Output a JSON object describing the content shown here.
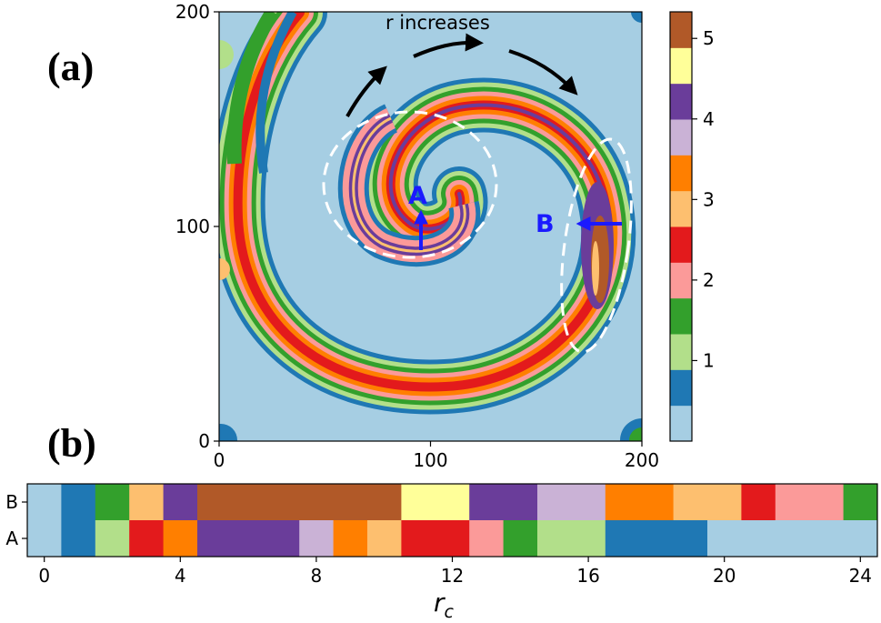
{
  "colors": {
    "palette": [
      "#a6cee3",
      "#1f78b4",
      "#b2df8a",
      "#33a02c",
      "#fb9a99",
      "#e31a1c",
      "#fdbf6f",
      "#ff7f00",
      "#cab2d6",
      "#6a3d9a",
      "#ffff99",
      "#b15928"
    ],
    "arrow_black": "#000000",
    "arrow_blue": "#1a1aff",
    "ellipse": "#ffffff"
  },
  "chart_data": [
    {
      "type": "heatmap",
      "panel_label": "(a)",
      "xlim": [
        0,
        200
      ],
      "ylim": [
        0,
        200
      ],
      "x_ticks": [
        0,
        100,
        200
      ],
      "y_ticks": [
        0,
        100,
        200
      ],
      "colorbar": {
        "range": [
          0,
          5.33
        ],
        "ticks": [
          1,
          2,
          3,
          4,
          5
        ],
        "levels": 12
      },
      "annotations": {
        "r_increases": "r increases",
        "marker_a": {
          "text": "A",
          "x": 95,
          "y": 112
        },
        "marker_b": {
          "text": "B",
          "x": 163,
          "y": 100
        }
      }
    },
    {
      "type": "heatmap",
      "panel_label": "(b)",
      "xlabel": "r",
      "xlabel_sub": "c",
      "xlim": [
        -0.5,
        24.5
      ],
      "x_ticks": [
        0,
        4,
        8,
        12,
        16,
        20,
        24
      ],
      "rows": [
        {
          "label": "B",
          "segments": [
            {
              "start": -0.5,
              "end": 0.5,
              "level": 0
            },
            {
              "start": 0.5,
              "end": 1.5,
              "level": 1
            },
            {
              "start": 1.5,
              "end": 2.5,
              "level": 3
            },
            {
              "start": 2.5,
              "end": 3.5,
              "level": 6
            },
            {
              "start": 3.5,
              "end": 4.5,
              "level": 9
            },
            {
              "start": 4.5,
              "end": 10.5,
              "level": 11
            },
            {
              "start": 10.5,
              "end": 12.5,
              "level": 10
            },
            {
              "start": 12.5,
              "end": 14.5,
              "level": 9
            },
            {
              "start": 14.5,
              "end": 16.5,
              "level": 8
            },
            {
              "start": 16.5,
              "end": 18.5,
              "level": 7
            },
            {
              "start": 18.5,
              "end": 20.5,
              "level": 6
            },
            {
              "start": 20.5,
              "end": 21.5,
              "level": 5
            },
            {
              "start": 21.5,
              "end": 23.5,
              "level": 4
            },
            {
              "start": 23.5,
              "end": 24.5,
              "level": 3
            }
          ]
        },
        {
          "label": "A",
          "segments": [
            {
              "start": -0.5,
              "end": 0.5,
              "level": 0
            },
            {
              "start": 0.5,
              "end": 1.5,
              "level": 1
            },
            {
              "start": 1.5,
              "end": 2.5,
              "level": 2
            },
            {
              "start": 2.5,
              "end": 3.5,
              "level": 5
            },
            {
              "start": 3.5,
              "end": 4.5,
              "level": 7
            },
            {
              "start": 4.5,
              "end": 7.5,
              "level": 9
            },
            {
              "start": 7.5,
              "end": 8.5,
              "level": 8
            },
            {
              "start": 8.5,
              "end": 9.5,
              "level": 7
            },
            {
              "start": 9.5,
              "end": 10.5,
              "level": 6
            },
            {
              "start": 10.5,
              "end": 12.5,
              "level": 5
            },
            {
              "start": 12.5,
              "end": 13.5,
              "level": 4
            },
            {
              "start": 13.5,
              "end": 14.5,
              "level": 3
            },
            {
              "start": 14.5,
              "end": 16.5,
              "level": 2
            },
            {
              "start": 16.5,
              "end": 19.5,
              "level": 1
            },
            {
              "start": 19.5,
              "end": 24.5,
              "level": 0
            }
          ]
        }
      ]
    }
  ]
}
